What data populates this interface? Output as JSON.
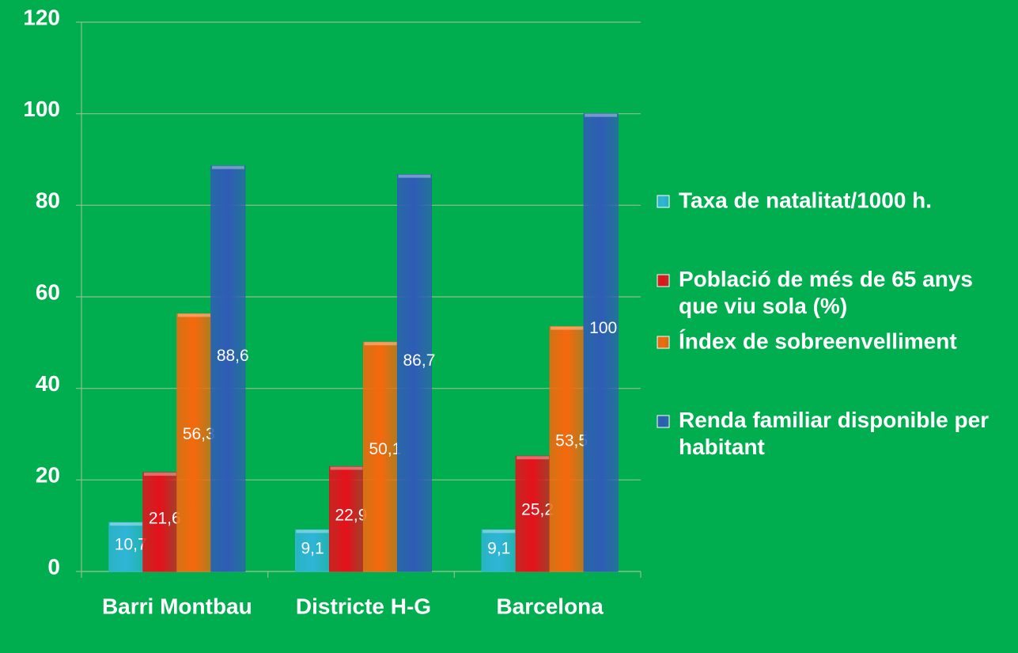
{
  "chart_data": {
    "type": "bar",
    "categories": [
      "Barri Montbau",
      "Districte H-G",
      "Barcelona"
    ],
    "series": [
      {
        "name": "Taxa de natalitat/1000 h.",
        "color": "#2fb5d8",
        "values": [
          10.7,
          9.1,
          9.1
        ],
        "value_labels": [
          "10,7",
          "9,1",
          "9,1"
        ]
      },
      {
        "name": "Població de més de 65 anys que viu sola (%)",
        "color": "#e5111b",
        "values": [
          21.6,
          22.9,
          25.2
        ],
        "value_labels": [
          "21,6",
          "22,9",
          "25,2"
        ]
      },
      {
        "name": "Índex de sobreenvelliment",
        "color": "#f7680c",
        "values": [
          56.3,
          50.1,
          53.5
        ],
        "value_labels": [
          "56,3",
          "50,1",
          "53,5"
        ]
      },
      {
        "name": "Renda familiar disponible per habitant",
        "color": "#2f5cb6",
        "values": [
          88.6,
          86.7,
          100
        ],
        "value_labels": [
          "88,6",
          "86,7",
          "100"
        ]
      }
    ],
    "ylim": [
      0,
      120
    ],
    "yticks": [
      0,
      20,
      40,
      60,
      80,
      100,
      120
    ],
    "grid": true,
    "legend": "right"
  }
}
